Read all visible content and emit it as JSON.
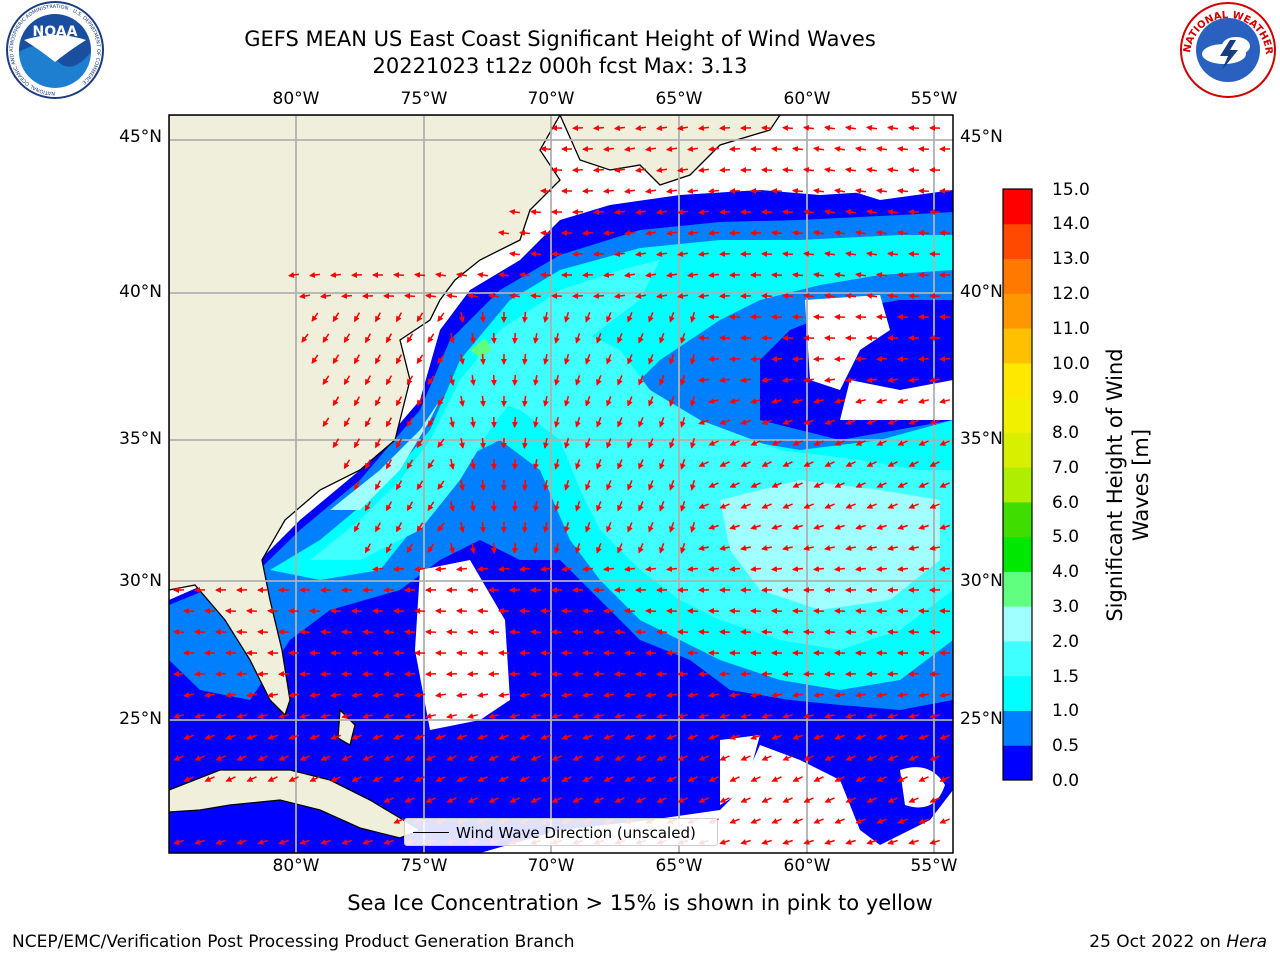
{
  "header": {
    "title_line1": "GEFS MEAN US East Coast Significant Height of Wind Waves",
    "title_line2": "20221023 t12z 000h fcst   Max: 3.13"
  },
  "logos": {
    "left": "NOAA",
    "left_ring_text": "NATIONAL OCEANIC AND ATMOSPHERIC ADMINISTRATION · U.S. DEPARTMENT OF COMMERCE",
    "right_ring_text": "NATIONAL WEATHER SERVICE"
  },
  "map": {
    "lon_labels": [
      "80°W",
      "75°W",
      "70°W",
      "65°W",
      "60°W",
      "55°W"
    ],
    "lat_labels": [
      "45°N",
      "40°N",
      "35°N",
      "30°N",
      "25°N"
    ],
    "legend_label": "Wind Wave Direction (unscaled)",
    "colors": {
      "land": "#efefdc",
      "no_data": "#ffffff",
      "arrows": "#ff0000",
      "grid": "#b0b0b0"
    }
  },
  "colorbar": {
    "label": "Significant Height of Wind Waves [m]",
    "ticks": [
      "0.0",
      "0.5",
      "1.0",
      "1.5",
      "2.0",
      "3.0",
      "4.0",
      "5.0",
      "6.0",
      "7.0",
      "8.0",
      "9.0",
      "10.0",
      "11.0",
      "12.0",
      "13.0",
      "14.0",
      "15.0"
    ],
    "colors": [
      "#0000ff",
      "#0080ff",
      "#00ffff",
      "#40ffff",
      "#a0ffff",
      "#60ff80",
      "#00e800",
      "#40dd00",
      "#b0ee00",
      "#d8f000",
      "#f0f000",
      "#ffe800",
      "#ffc000",
      "#ff9800",
      "#ff7800",
      "#ff4800",
      "#ff0000"
    ]
  },
  "footer": {
    "note": "Sea Ice Concentration > 15% is shown in pink to yellow",
    "left": "NCEP/EMC/Verification Post Processing Product Generation Branch",
    "date": "25 Oct 2022 on",
    "host": "Hera"
  }
}
